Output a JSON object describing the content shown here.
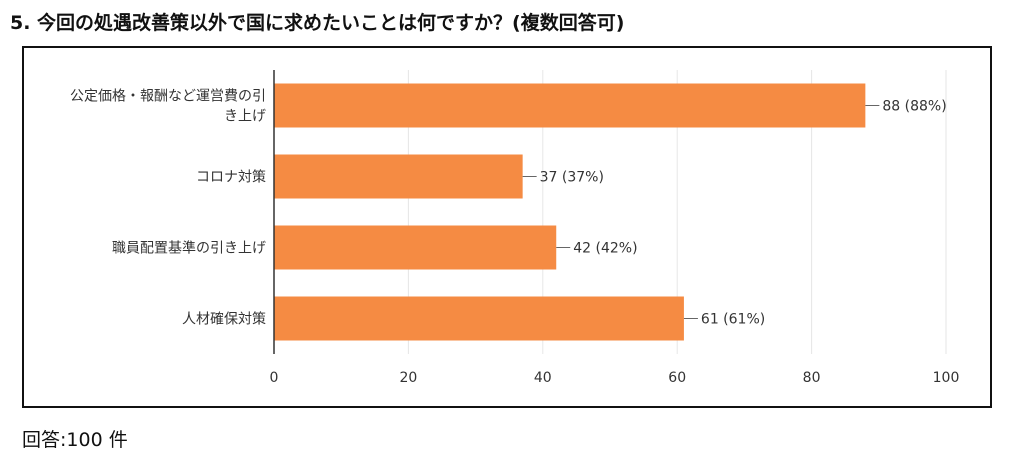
{
  "title": "5. 今回の処遇改善策以外で国に求めたいことは何ですか？(複数回答可)",
  "footer": "回答:100 件",
  "colors": {
    "bar": "#f58b43",
    "grid": "#e6e6e6",
    "axis": "#333333",
    "text": "#333333"
  },
  "chart_data": {
    "type": "bar",
    "orientation": "horizontal",
    "categories": [
      [
        "公定価格・報酬など運営費の引",
        "き上げ"
      ],
      [
        "コロナ対策"
      ],
      [
        "職員配置基準の引き上げ"
      ],
      [
        "人材確保対策"
      ]
    ],
    "values": [
      88,
      37,
      42,
      61
    ],
    "data_labels": [
      "88 (88%)",
      "37 (37%)",
      "42 (42%)",
      "61 (61%)"
    ],
    "xlim": [
      0,
      100
    ],
    "xticks": [
      0,
      20,
      40,
      60,
      80,
      100
    ],
    "grid": true
  }
}
